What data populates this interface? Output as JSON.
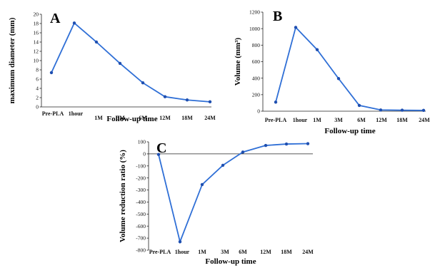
{
  "chart_data": [
    {
      "type": "line",
      "panel": "A",
      "x": [
        "Pre-PLA",
        "1hour",
        "1M",
        "3M",
        "6M",
        "12M",
        "18M",
        "24M"
      ],
      "values": [
        7.4,
        18.1,
        14.0,
        9.4,
        5.2,
        2.2,
        1.5,
        1.1
      ],
      "ylabel": "maximum diameter (mm)",
      "xlabel": "Follow-up time",
      "ylim": [
        0,
        20
      ],
      "yticks": [
        0,
        2,
        4,
        6,
        8,
        10,
        12,
        14,
        16,
        18,
        20
      ],
      "color": "#2f6fd6"
    },
    {
      "type": "line",
      "panel": "B",
      "x": [
        "Pre-PLA",
        "1hour",
        "1M",
        "3M",
        "6M",
        "12M",
        "18M",
        "24M"
      ],
      "values": [
        110,
        1015,
        745,
        395,
        70,
        15,
        12,
        10
      ],
      "ylabel": "Volume (mm³)",
      "xlabel": "Follow-up time",
      "ylim": [
        0,
        1200
      ],
      "yticks": [
        0,
        200,
        400,
        600,
        800,
        1000,
        1200
      ],
      "color": "#2f6fd6"
    },
    {
      "type": "line",
      "panel": "C",
      "x": [
        "Pre-PLA",
        "1hour",
        "1M",
        "3M",
        "6M",
        "12M",
        "18M",
        "24M"
      ],
      "values": [
        -5,
        -730,
        -255,
        -95,
        15,
        70,
        82,
        85
      ],
      "ylabel": "Volume reduction ratio (%)",
      "xlabel": "Follow-up time",
      "ylim": [
        -800,
        100
      ],
      "yticks": [
        -800,
        -700,
        -600,
        -500,
        -400,
        -300,
        -200,
        -100,
        0,
        100
      ],
      "color": "#2f6fd6"
    }
  ]
}
